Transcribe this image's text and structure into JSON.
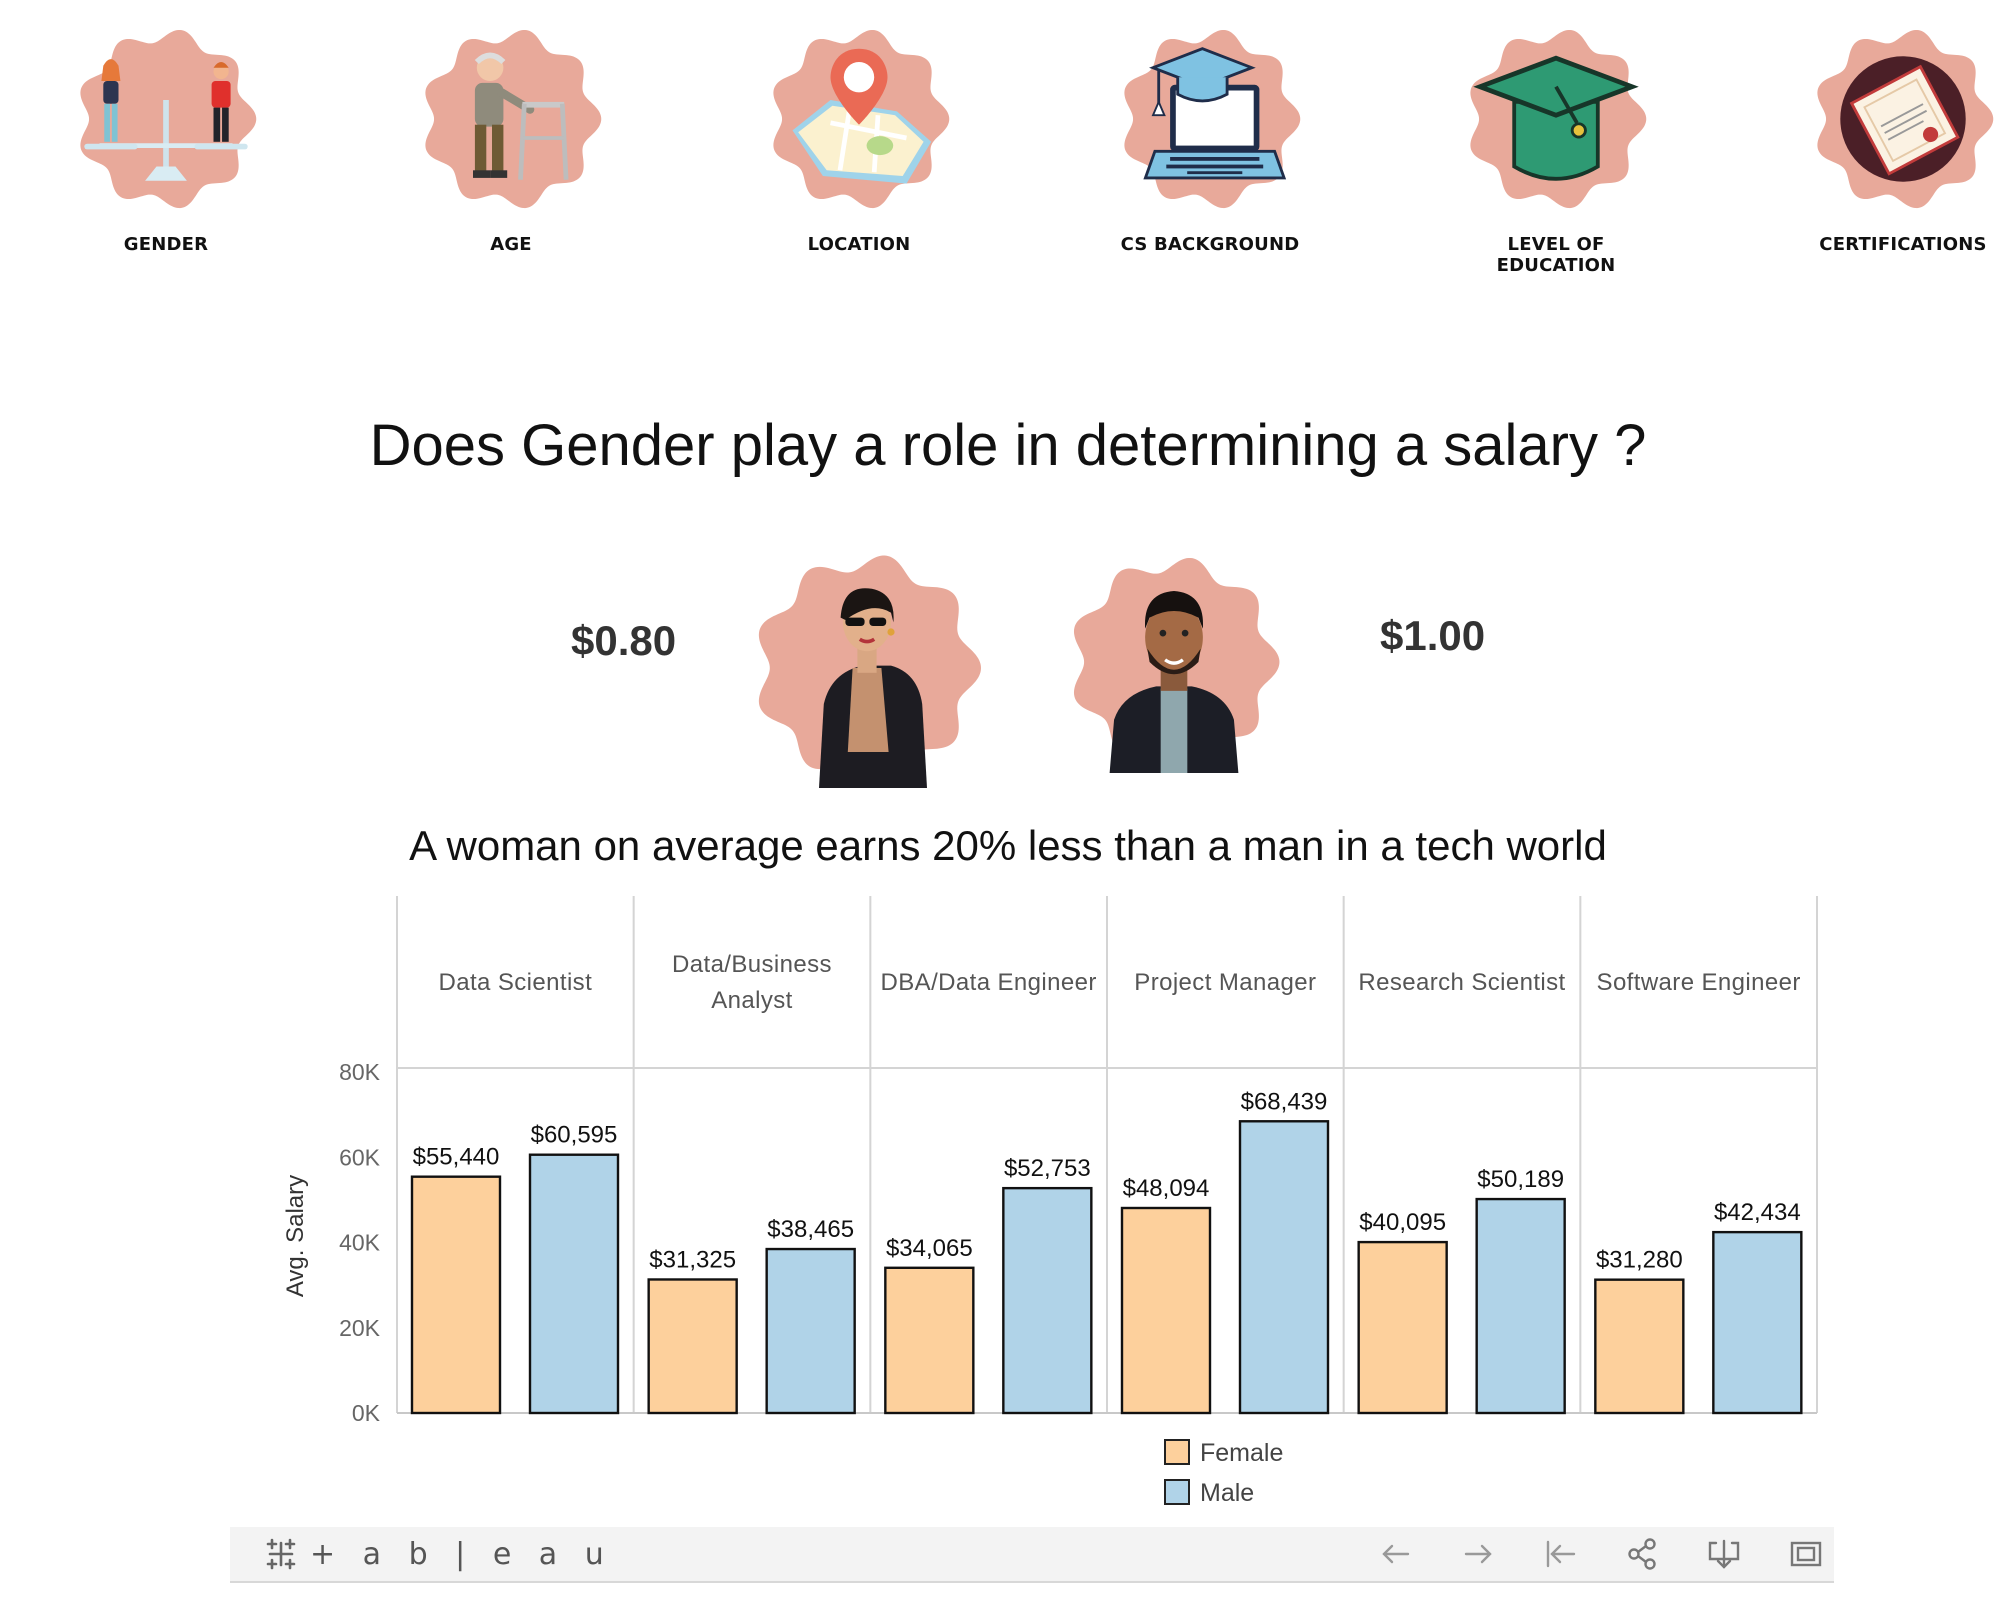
{
  "nav": {
    "items": [
      {
        "label": "GENDER",
        "icon": "gender-scale-icon"
      },
      {
        "label": "AGE",
        "icon": "elderly-walker-icon"
      },
      {
        "label": "LOCATION",
        "icon": "map-pin-icon"
      },
      {
        "label": "CS BACKGROUND",
        "icon": "laptop-graduation-icon"
      },
      {
        "label": "LEVEL OF EDUCATION",
        "icon": "graduation-cap-icon"
      },
      {
        "label": "CERTIFICATIONS",
        "icon": "certificate-icon"
      }
    ]
  },
  "header": {
    "title": "Does Gender play a role in determining a salary ?",
    "female_rate": "$0.80",
    "male_rate": "$1.00",
    "subtitle": "A woman on average earns 20% less than a man in a tech world"
  },
  "colors": {
    "badge": "#e8a99a",
    "female": "#fdd09c",
    "male": "#b0d3e8"
  },
  "chart_data": {
    "type": "bar",
    "categories": [
      "Data Scientist",
      "Data/Business Analyst",
      "DBA/Data Engineer",
      "Project Manager",
      "Research Scientist",
      "Software Engineer"
    ],
    "series": [
      {
        "name": "Female",
        "values": [
          55440,
          31325,
          34065,
          48094,
          40095,
          31280
        ],
        "labels": [
          "$55,440",
          "$31,325",
          "$34,065",
          "$48,094",
          "$40,095",
          "$31,280"
        ]
      },
      {
        "name": "Male",
        "values": [
          60595,
          38465,
          52753,
          68439,
          50189,
          42434
        ],
        "labels": [
          "$60,595",
          "$38,465",
          "$52,753",
          "$68,439",
          "$50,189",
          "$42,434"
        ]
      }
    ],
    "ylabel": "Avg. Salary",
    "yticks": [
      {
        "value": 0,
        "label": "0K"
      },
      {
        "value": 20000,
        "label": "20K"
      },
      {
        "value": 40000,
        "label": "40K"
      },
      {
        "value": 60000,
        "label": "60K"
      },
      {
        "value": 80000,
        "label": "80K"
      }
    ],
    "ylim": [
      0,
      80000
    ],
    "legend": [
      "Female",
      "Male"
    ],
    "legend_position": "bottom-center"
  },
  "toolbar": {
    "brand": "+ a b | e a u",
    "buttons": [
      "undo-icon",
      "redo-icon",
      "revert-icon",
      "share-icon",
      "download-icon",
      "fullscreen-icon"
    ]
  }
}
